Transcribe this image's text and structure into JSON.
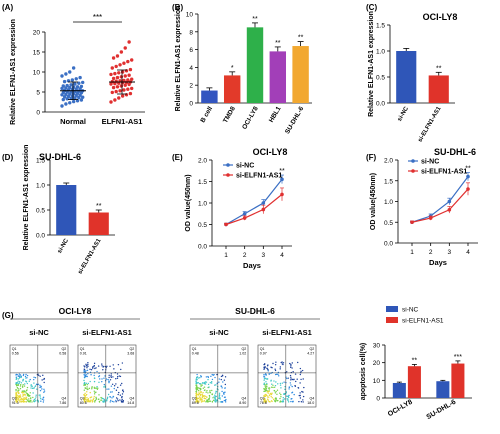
{
  "figure_title": "",
  "chart_data": [
    {
      "panel": "(A)",
      "type": "scatter",
      "ylabel": "Relative ELFN1-AS1 expression",
      "yticks": [
        0,
        5,
        10,
        15,
        20
      ],
      "ylim": [
        0,
        20
      ],
      "categories": [
        "Normal",
        "ELFN1-AS1"
      ],
      "colors": [
        "#3a6fc4",
        "#e03030"
      ],
      "groups": [
        {
          "name": "Normal",
          "mean": 5.3,
          "sd": 2.2,
          "values": [
            1.5,
            2.0,
            2.3,
            2.6,
            2.8,
            3.0,
            3.1,
            3.3,
            3.4,
            3.5,
            3.6,
            3.7,
            3.8,
            3.9,
            4.0,
            4.1,
            4.2,
            4.3,
            4.4,
            4.5,
            4.6,
            4.7,
            4.8,
            4.9,
            5.0,
            5.0,
            5.1,
            5.2,
            5.3,
            5.4,
            5.5,
            5.6,
            5.7,
            5.8,
            5.9,
            6.0,
            6.1,
            6.2,
            6.3,
            6.4,
            6.5,
            6.6,
            6.8,
            7.0,
            7.2,
            7.4,
            7.6,
            7.8,
            8.0,
            8.3,
            8.6,
            9.0,
            9.5,
            10.0,
            11.0
          ]
        },
        {
          "name": "ELFN1-AS1",
          "mean": 7.5,
          "sd": 3.0,
          "values": [
            2.5,
            3.0,
            3.5,
            4.0,
            4.3,
            4.6,
            4.9,
            5.1,
            5.3,
            5.5,
            5.7,
            5.9,
            6.1,
            6.3,
            6.5,
            6.7,
            6.9,
            7.0,
            7.1,
            7.2,
            7.3,
            7.4,
            7.5,
            7.6,
            7.7,
            7.8,
            7.9,
            8.0,
            8.2,
            8.4,
            8.6,
            8.8,
            9.0,
            9.2,
            9.4,
            9.6,
            9.8,
            10.0,
            10.3,
            10.6,
            11.0,
            11.4,
            11.8,
            12.2,
            12.6,
            13.0,
            13.5,
            14.0,
            15.0,
            16.0,
            17.5
          ]
        }
      ],
      "significance": "***"
    },
    {
      "panel": "(B)",
      "type": "bar",
      "ylabel": "Relative ELFN1-AS1 expression",
      "yticks": [
        0,
        2,
        4,
        6,
        8,
        10
      ],
      "ylim": [
        0,
        10
      ],
      "categories": [
        "B cell",
        "TMD8",
        "OCI-LY8",
        "HBL1",
        "SU-DHL-6"
      ],
      "values": [
        1.4,
        3.1,
        8.5,
        5.8,
        6.4
      ],
      "errors": [
        0.3,
        0.4,
        0.5,
        0.5,
        0.5
      ],
      "colors": [
        "#3355c0",
        "#e23a2a",
        "#2eb04a",
        "#a23fb8",
        "#f2a830"
      ],
      "annotations": [
        "",
        "*",
        "**",
        "**",
        "**"
      ]
    },
    {
      "panel": "(C)",
      "type": "bar",
      "title": "OCI-LY8",
      "ylabel": "Relative ELFN1-AS1 expression",
      "yticks": [
        "0.0",
        "0.5",
        "1.0",
        "1.5"
      ],
      "ylim": [
        0,
        1.5
      ],
      "categories": [
        "si-NC",
        "si-ELFN1-AS1"
      ],
      "values": [
        1.0,
        0.53
      ],
      "errors": [
        0.05,
        0.06
      ],
      "colors": [
        "#2f56b8",
        "#e0332a"
      ],
      "annotations": [
        "",
        "**"
      ]
    },
    {
      "panel": "(D)",
      "type": "bar",
      "title": "SU-DHL-6",
      "ylabel": "Relative ELFN1-AS1 expression",
      "yticks": [
        "0.0",
        "0.5",
        "1.0",
        "1.5"
      ],
      "ylim": [
        0,
        1.5
      ],
      "categories": [
        "si-NC",
        "si-ELFN1-AS1"
      ],
      "values": [
        1.0,
        0.45
      ],
      "errors": [
        0.04,
        0.05
      ],
      "colors": [
        "#2f56b8",
        "#e0332a"
      ],
      "annotations": [
        "",
        "**"
      ]
    },
    {
      "panel": "(E)",
      "type": "line",
      "title": "OCI-LY8",
      "xlabel": "Days",
      "ylabel": "OD  value(450nm)",
      "x": [
        1,
        2,
        3,
        4
      ],
      "yticks": [
        "0.0",
        "0.5",
        "1.0",
        "1.5",
        "2.0"
      ],
      "ylim": [
        0,
        2.0
      ],
      "series": [
        {
          "name": "si-NC",
          "color": "#3a6fc4",
          "values": [
            0.5,
            0.75,
            1.0,
            1.55
          ],
          "errors": [
            0.03,
            0.05,
            0.08,
            0.1
          ]
        },
        {
          "name": "si-ELFN1-AS1",
          "color": "#e03030",
          "values": [
            0.5,
            0.65,
            0.85,
            1.2
          ],
          "errors": [
            0.03,
            0.05,
            0.1,
            0.15
          ]
        }
      ],
      "annotations": [
        {
          "x": 4,
          "text": "**"
        }
      ]
    },
    {
      "panel": "(F)",
      "type": "line",
      "title": "SU-DHL-6",
      "xlabel": "Days",
      "ylabel": "OD  value(450nm)",
      "x": [
        1,
        2,
        3,
        4
      ],
      "yticks": [
        "0.0",
        "0.5",
        "1.0",
        "1.5",
        "2.0"
      ],
      "ylim": [
        0,
        2.0
      ],
      "series": [
        {
          "name": "si-NC",
          "color": "#3a6fc4",
          "values": [
            0.5,
            0.65,
            1.0,
            1.6
          ],
          "errors": [
            0.03,
            0.05,
            0.08,
            0.1
          ]
        },
        {
          "name": "si-ELFN1-AS1",
          "color": "#e03030",
          "values": [
            0.5,
            0.6,
            0.8,
            1.3
          ],
          "errors": [
            0.03,
            0.05,
            0.08,
            0.15
          ]
        }
      ],
      "annotations": [
        {
          "x": 4,
          "text": "**"
        }
      ]
    },
    {
      "panel": "(G)",
      "type": "bar",
      "ylabel": "apoptosis cell(%)",
      "yticks": [
        0,
        10,
        20,
        30
      ],
      "ylim": [
        0,
        30
      ],
      "categories": [
        "OCI-LY8",
        "SU-DHL-6"
      ],
      "series": [
        {
          "name": "si-NC",
          "color": "#2f56b8",
          "values": [
            8.5,
            9.5
          ],
          "errors": [
            0.5,
            0.5
          ]
        },
        {
          "name": "si-ELFN1-AS1",
          "color": "#e0332a",
          "values": [
            18.0,
            19.5
          ],
          "errors": [
            1.0,
            1.5
          ]
        }
      ],
      "annotations": [
        "**",
        "***"
      ]
    }
  ],
  "flow_panels": {
    "groups": [
      {
        "title": "OCI-LY8",
        "plots": [
          {
            "label": "si-NC",
            "quadrants": [
              "Q1\n0.56",
              "Q2\n0.58",
              "Q3\n91.0",
              "Q4\n7.86"
            ]
          },
          {
            "label": "si-ELFN1-AS1",
            "quadrants": [
              "Q1\n0.91",
              "Q2\n3.68",
              "Q3\n80.6",
              "Q4\n14.8"
            ]
          }
        ]
      },
      {
        "title": "SU-DHL-6",
        "plots": [
          {
            "label": "si-NC",
            "quadrants": [
              "Q1\n0.48",
              "Q2\n1.02",
              "Q3\n89.6",
              "Q4\n8.90"
            ]
          },
          {
            "label": "si-ELFN1-AS1",
            "quadrants": [
              "Q1\n0.97",
              "Q2\n4.27",
              "Q3\n76.8",
              "Q4\n18.0"
            ]
          }
        ]
      }
    ]
  }
}
